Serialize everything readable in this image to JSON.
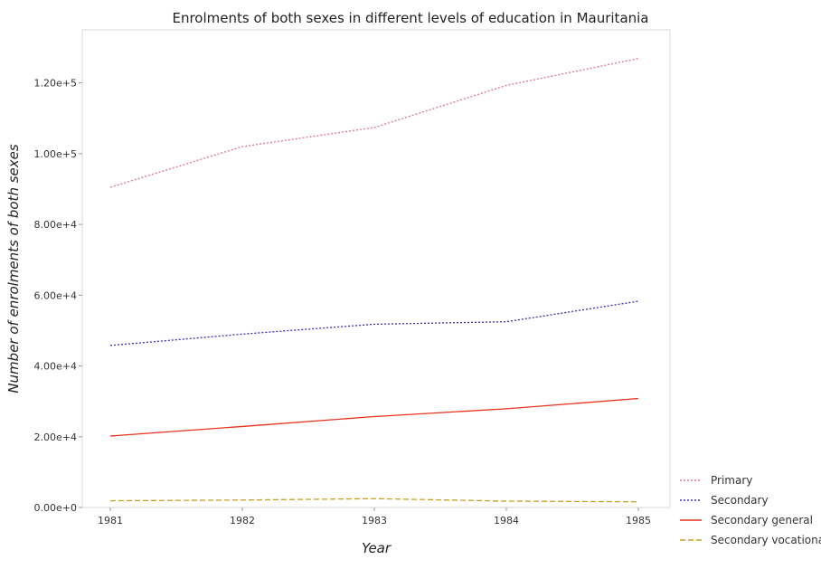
{
  "chart_data": {
    "type": "line",
    "title": "Enrolments of both sexes in different levels of education in Mauritania",
    "xlabel": "Year",
    "ylabel": "Number of enrolments of both sexes",
    "x": [
      "1981",
      "1982",
      "1983",
      "1984",
      "1985"
    ],
    "ylim": [
      0,
      135000
    ],
    "yticks": [
      0,
      20000,
      40000,
      60000,
      80000,
      100000,
      120000
    ],
    "ytick_labels": [
      "0.00e+0",
      "2.00e+4",
      "4.00e+4",
      "6.00e+4",
      "8.00e+4",
      "1.00e+5",
      "1.20e+5"
    ],
    "legend_position": "bottom-right",
    "grid": false,
    "series": [
      {
        "name": "Primary",
        "color": "#e0709a",
        "dash": "2,2",
        "values": [
          90500,
          102000,
          107400,
          119300,
          126900
        ]
      },
      {
        "name": "Secondary",
        "color": "#3a2fb0",
        "dash": "2,2",
        "values": [
          45800,
          49000,
          51800,
          52500,
          58300
        ]
      },
      {
        "name": "Secondary general",
        "color": "#e8321e",
        "dash": "",
        "values": [
          20200,
          22900,
          25700,
          27900,
          30800
        ]
      },
      {
        "name": "Secondary vocational",
        "color": "#c8a020",
        "dash": "6,3",
        "values": [
          1900,
          2100,
          2500,
          1800,
          1600
        ]
      }
    ]
  }
}
